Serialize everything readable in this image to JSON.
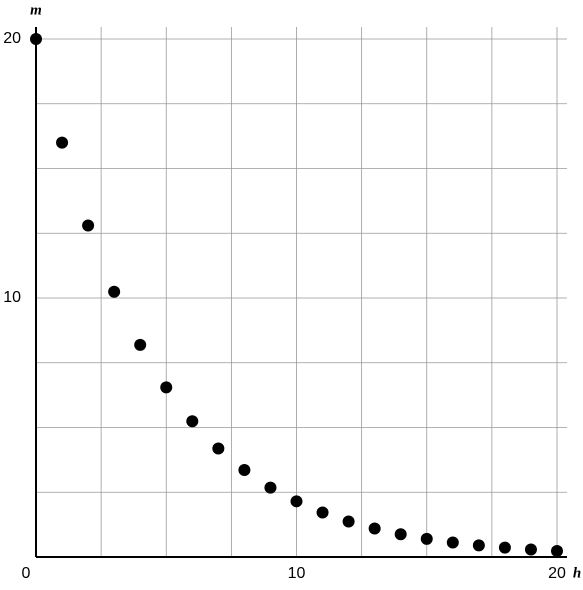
{
  "chart_data": {
    "type": "scatter",
    "x_label": "h",
    "y_label": "m",
    "x": [
      0,
      1,
      2,
      3,
      4,
      5,
      6,
      7,
      8,
      9,
      10,
      11,
      12,
      13,
      14,
      15,
      16,
      17,
      18,
      19,
      20
    ],
    "series": [
      {
        "color": "#000000",
        "values": [
          20,
          16,
          12.8,
          10.24,
          8.19,
          6.55,
          5.24,
          4.19,
          3.36,
          2.68,
          2.15,
          1.72,
          1.37,
          1.1,
          0.88,
          0.7,
          0.56,
          0.45,
          0.36,
          0.29,
          0.23
        ]
      }
    ],
    "xlim": [
      0,
      20
    ],
    "ylim": [
      0,
      20
    ],
    "xticks": [
      0,
      10,
      20
    ],
    "yticks": [
      10,
      20
    ],
    "grid": true,
    "xgrid": [
      2.5,
      5,
      7.5,
      10,
      12.5,
      15,
      17.5,
      20
    ],
    "ygrid": [
      2.5,
      5,
      7.5,
      10,
      12.5,
      15,
      17.5,
      20
    ]
  }
}
